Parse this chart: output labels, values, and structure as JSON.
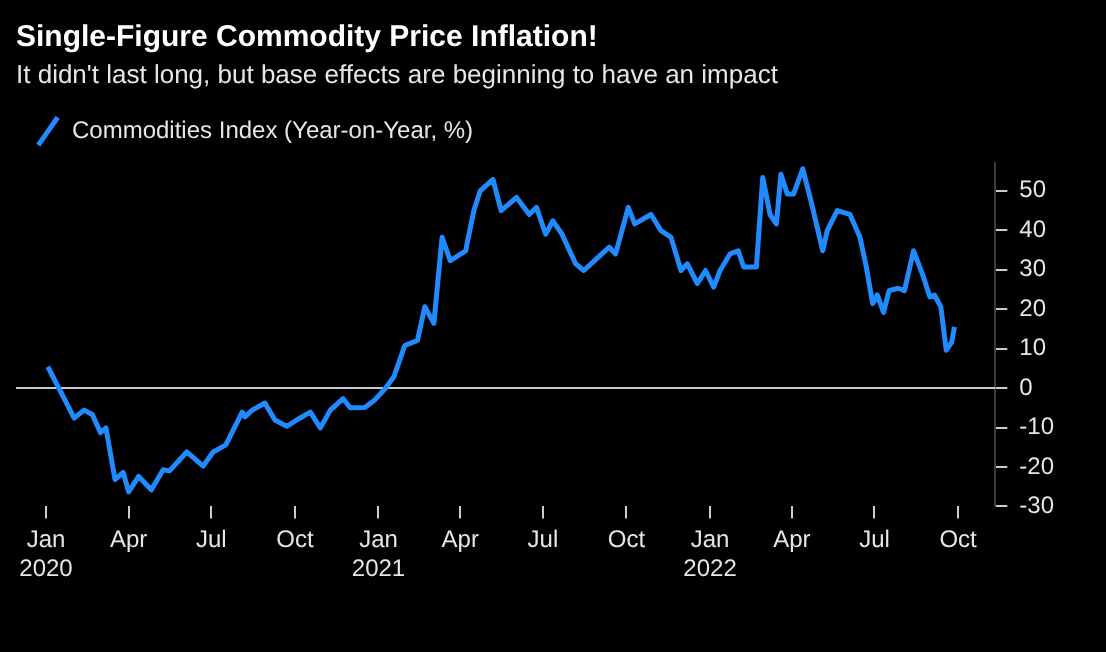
{
  "chart_data": {
    "type": "line",
    "title": "Single-Figure Commodity Price Inflation!",
    "subtitle": "It didn't last long, but base effects are beginning to have an impact",
    "x": [
      "2020-01-03",
      "2020-01-12",
      "2020-01-20",
      "2020-02-01",
      "2020-02-12",
      "2020-02-21",
      "2020-03-01",
      "2020-03-07",
      "2020-03-17",
      "2020-03-26",
      "2020-04-01",
      "2020-04-12",
      "2020-04-26",
      "2020-05-09",
      "2020-05-16",
      "2020-06-04",
      "2020-06-22",
      "2020-07-03",
      "2020-07-17",
      "2020-08-04",
      "2020-08-07",
      "2020-08-15",
      "2020-08-29",
      "2020-09-09",
      "2020-09-22",
      "2020-10-03",
      "2020-10-18",
      "2020-10-29",
      "2020-11-09",
      "2020-11-23",
      "2020-12-01",
      "2020-12-17",
      "2020-12-28",
      "2021-01-09",
      "2021-01-18",
      "2021-01-30",
      "2021-02-13",
      "2021-02-21",
      "2021-03-03",
      "2021-03-12",
      "2021-03-21",
      "2021-04-07",
      "2021-04-16",
      "2021-04-23",
      "2021-05-07",
      "2021-05-16",
      "2021-06-02",
      "2021-06-16",
      "2021-06-24",
      "2021-07-04",
      "2021-07-12",
      "2021-07-22",
      "2021-08-06",
      "2021-08-15",
      "2021-08-31",
      "2021-09-12",
      "2021-09-19",
      "2021-10-03",
      "2021-10-10",
      "2021-10-28",
      "2021-11-08",
      "2021-11-19",
      "2021-11-30",
      "2021-12-07",
      "2021-12-18",
      "2021-12-27",
      "2022-01-05",
      "2022-01-12",
      "2022-01-23",
      "2022-02-01",
      "2022-02-07",
      "2022-02-21",
      "2022-02-28",
      "2022-03-08",
      "2022-03-15",
      "2022-03-20",
      "2022-03-27",
      "2022-04-03",
      "2022-04-13",
      "2022-04-22",
      "2022-05-05",
      "2022-05-10",
      "2022-05-21",
      "2022-06-04",
      "2022-06-15",
      "2022-06-22",
      "2022-06-29",
      "2022-07-04",
      "2022-07-11",
      "2022-07-17",
      "2022-07-27",
      "2022-08-03",
      "2022-08-13",
      "2022-08-24",
      "2022-08-31",
      "2022-09-05",
      "2022-09-12",
      "2022-09-18",
      "2022-09-24",
      "2022-09-27"
    ],
    "series": [
      {
        "name": "Commodities Index (Year-on-Year, %)",
        "color": "#1f8bff",
        "values": [
          5.4,
          1.4,
          -2.2,
          -7.6,
          -5.6,
          -6.7,
          -11.3,
          -10.1,
          -23.2,
          -21.4,
          -26.3,
          -22.4,
          -25.8,
          -20.7,
          -21,
          -16.2,
          -19.8,
          -16.2,
          -14.4,
          -6.1,
          -7.3,
          -5.6,
          -3.8,
          -8.1,
          -9.7,
          -8.1,
          -6.1,
          -10.1,
          -5.6,
          -2.7,
          -5,
          -4.9,
          -3,
          0,
          2.9,
          10.8,
          12.1,
          20.6,
          16.4,
          38.2,
          32.3,
          34.8,
          45,
          50,
          52.9,
          45,
          48.3,
          44,
          45.8,
          39,
          42.4,
          39,
          31.5,
          29.8,
          33.2,
          35.7,
          34,
          45.8,
          41.6,
          44,
          39.9,
          38.2,
          29.8,
          31.5,
          26.5,
          29.8,
          25.6,
          29.8,
          34,
          34.8,
          30.7,
          30.7,
          53.4,
          44,
          41.6,
          54.2,
          49.2,
          49.2,
          55.6,
          47.5,
          34.8,
          39.9,
          45,
          44,
          38.2,
          30.7,
          21.4,
          23.6,
          19.2,
          24.7,
          25.3,
          24.7,
          34.8,
          28.1,
          23.1,
          23.6,
          20.6,
          9.6,
          11.6,
          15.5
        ]
      }
    ],
    "xlim": [
      "2019-11-29",
      "2022-11-11"
    ],
    "xticks": [
      {
        "value": "2020-01-01",
        "label": "Jan 2020"
      },
      {
        "value": "2020-04-01",
        "label": "Apr"
      },
      {
        "value": "2020-07-01",
        "label": "Jul"
      },
      {
        "value": "2020-10-01",
        "label": "Oct"
      },
      {
        "value": "2021-01-01",
        "label": "Jan 2021"
      },
      {
        "value": "2021-04-01",
        "label": "Apr"
      },
      {
        "value": "2021-07-01",
        "label": "Jul"
      },
      {
        "value": "2021-10-01",
        "label": "Oct"
      },
      {
        "value": "2022-01-01",
        "label": "Jan 2022"
      },
      {
        "value": "2022-04-01",
        "label": "Apr"
      },
      {
        "value": "2022-07-01",
        "label": "Jul"
      },
      {
        "value": "2022-10-01",
        "label": "Oct"
      }
    ],
    "ylim": [
      -30,
      57
    ],
    "yticks": [
      -30,
      -20,
      -10,
      0,
      10,
      20,
      30,
      40,
      50
    ],
    "ref_lines": [
      {
        "axis": "y",
        "value": 0,
        "color": "#c8c8c8"
      }
    ],
    "legend": "top left",
    "grid": false,
    "marker": "none",
    "line_style": "solid"
  }
}
